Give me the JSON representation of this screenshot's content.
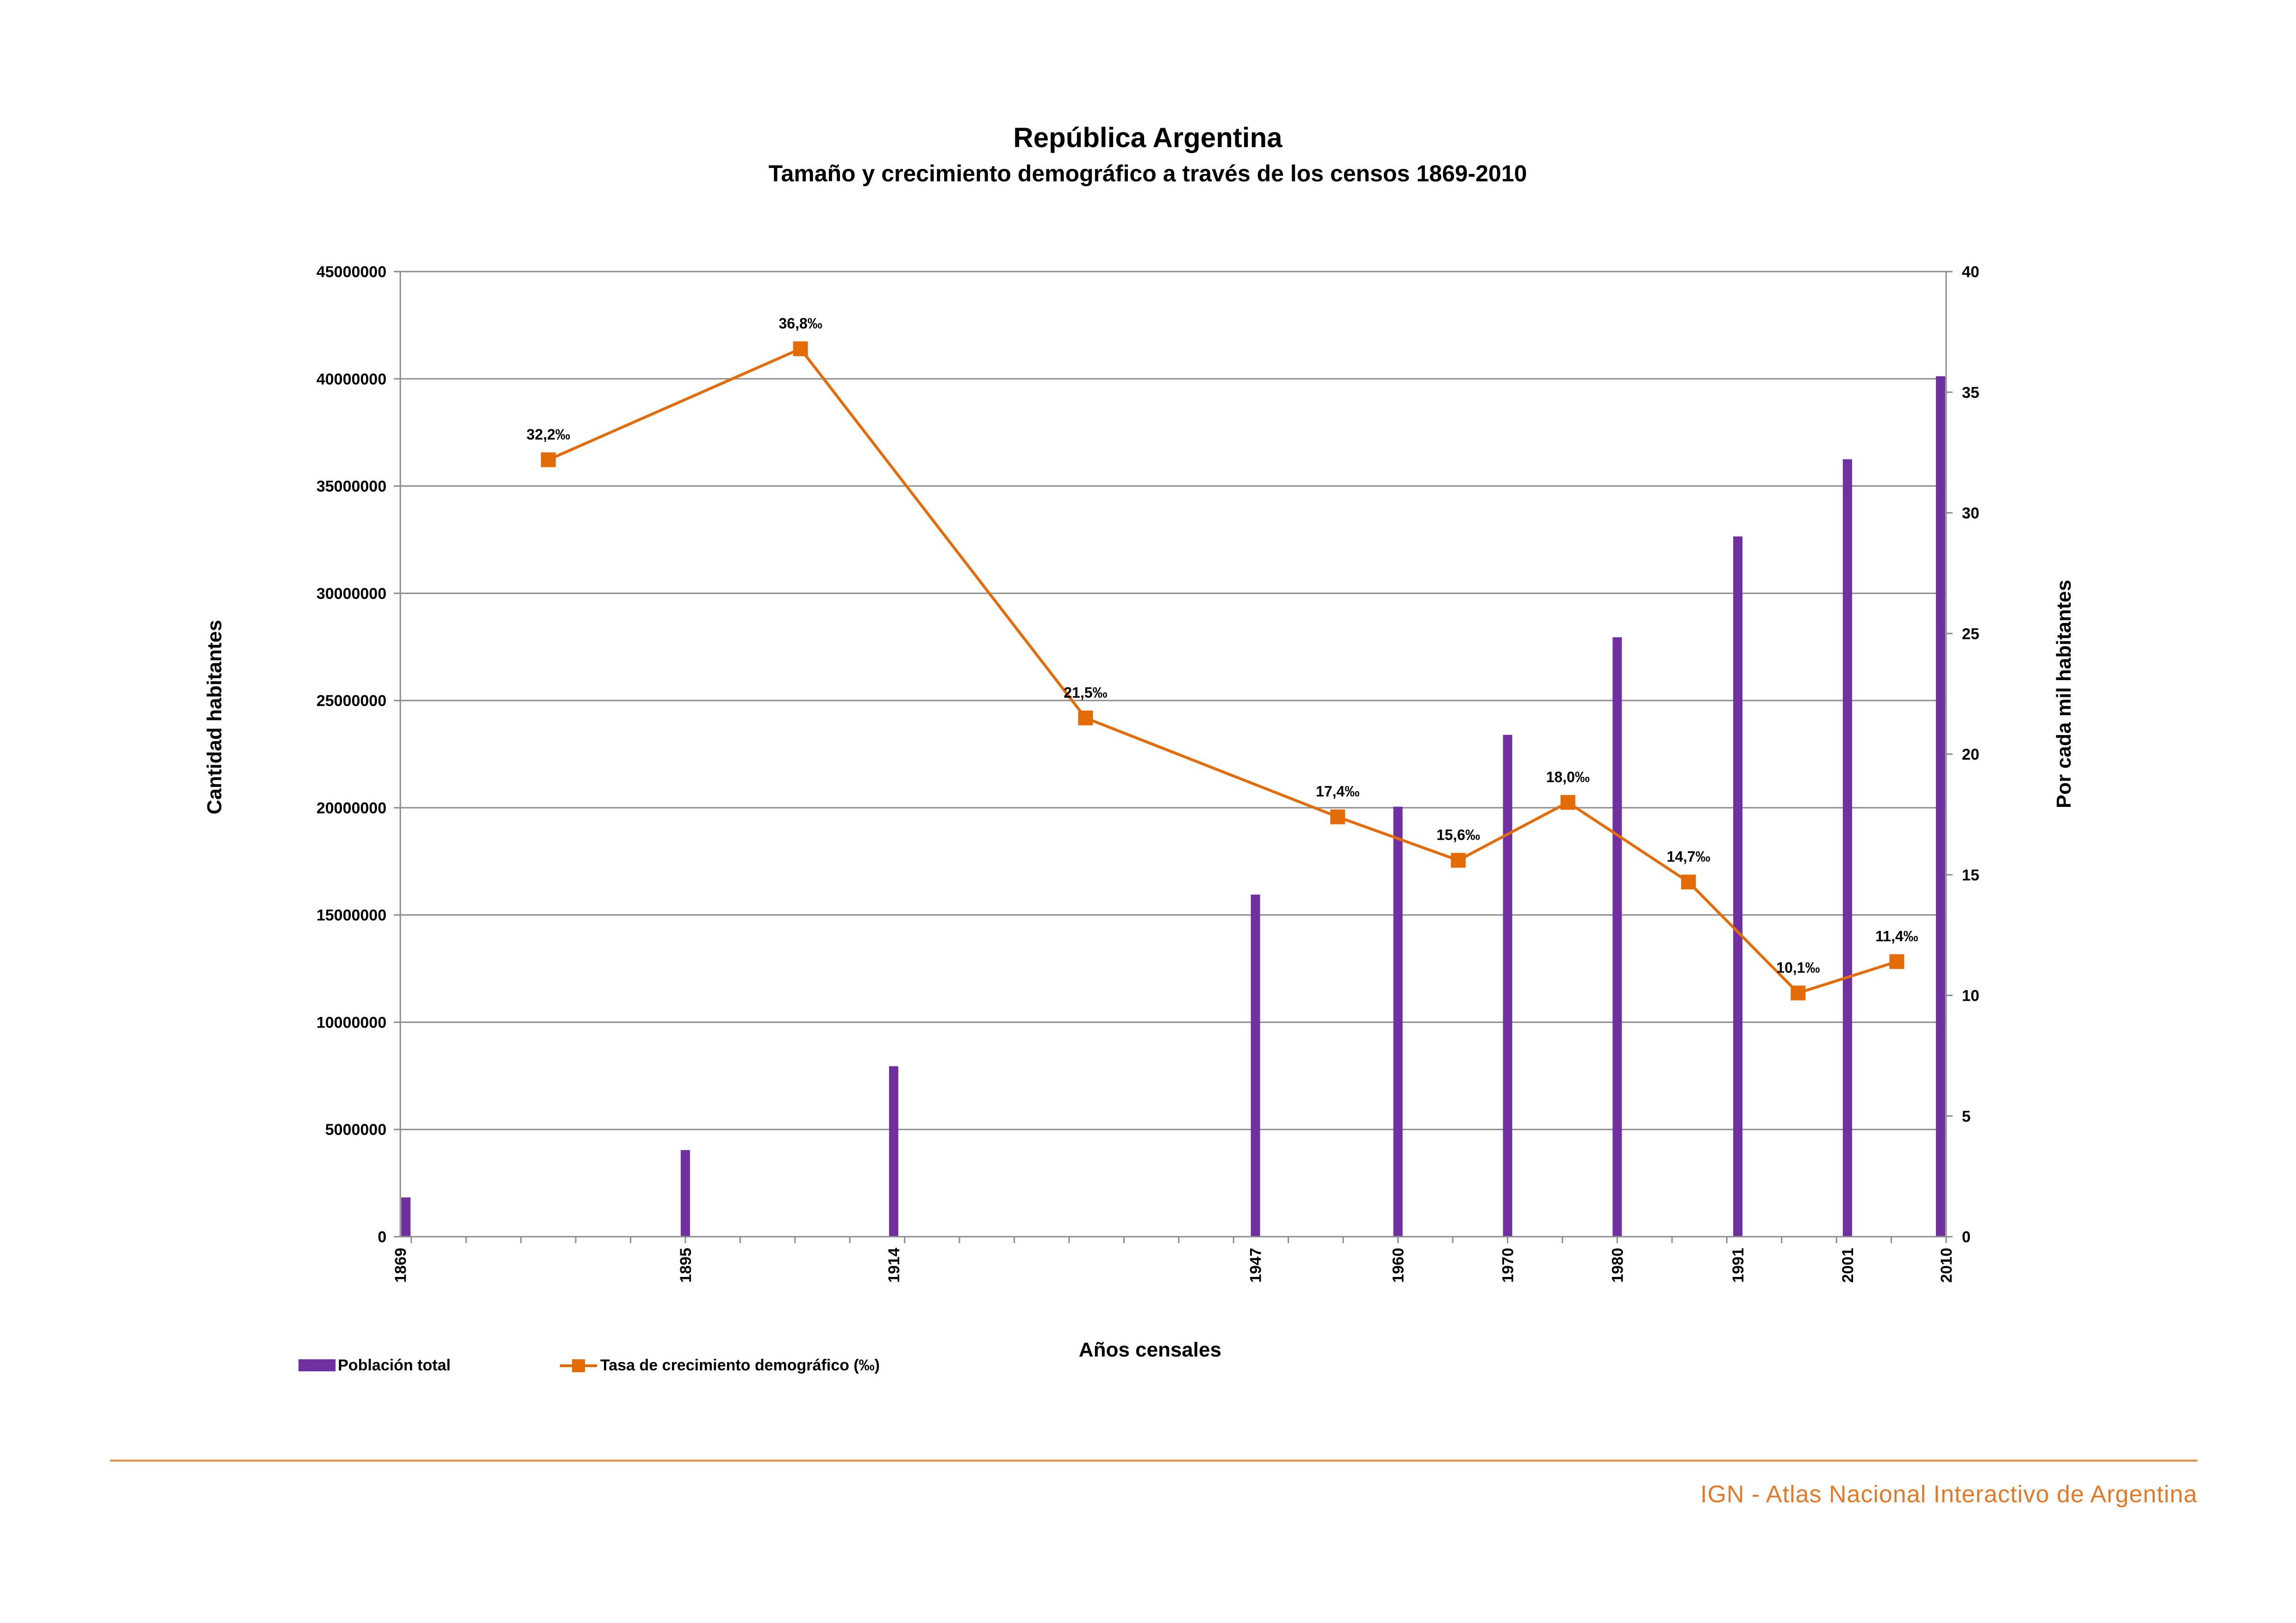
{
  "chart_data": {
    "type": "bar",
    "title": "República  Argentina",
    "subtitle": "Tamaño y crecimiento demográfico a través de los censos 1869-2010",
    "xlabel": "Años censales",
    "ylabel_left": "Cantidad habitantes",
    "ylabel_right": "Por cada mil habitantes",
    "ylim_left": [
      0,
      45000000
    ],
    "ylim_right": [
      0,
      40
    ],
    "yticks_left": [
      "0",
      "5000000",
      "10000000",
      "15000000",
      "20000000",
      "25000000",
      "30000000",
      "35000000",
      "40000000",
      "45000000"
    ],
    "yticks_right": [
      "0",
      "5",
      "10",
      "15",
      "20",
      "25",
      "30",
      "35",
      "40"
    ],
    "xlim": [
      1869,
      2010
    ],
    "categories": [
      "1869",
      "1895",
      "1914",
      "1947",
      "1960",
      "1970",
      "1980",
      "1991",
      "2001",
      "2010"
    ],
    "grid": true,
    "legend_position": "bottom-left",
    "series": [
      {
        "name": "Población total",
        "type": "bar",
        "axis": "left",
        "color": "#7030a0",
        "x": [
          1869,
          1895,
          1914,
          1947,
          1960,
          1970,
          1980,
          1991,
          2001,
          2010
        ],
        "values": [
          1830000,
          4040000,
          7950000,
          15950000,
          20050000,
          23400000,
          27950000,
          32650000,
          36250000,
          40120000
        ]
      },
      {
        "name": "Tasa de crecimiento demográfico (‰)",
        "type": "line",
        "axis": "right",
        "color": "#e36c09",
        "x": [
          1882.5,
          1905.5,
          1931.5,
          1954.5,
          1965.5,
          1975.5,
          1986.5,
          1996.5,
          2005.5
        ],
        "values": [
          32.2,
          36.8,
          21.5,
          17.4,
          15.6,
          18.0,
          14.7,
          10.1,
          11.4
        ],
        "labels": [
          "32,2‰",
          "36,8‰",
          "21,5‰",
          "17,4‰",
          "15,6‰",
          "18,0‰",
          "14,7‰",
          "10,1‰",
          "11,4‰"
        ]
      }
    ]
  },
  "footer": {
    "credit": "IGN - Atlas Nacional Interactivo de Argentina",
    "line_color": "#ec8b3a"
  }
}
